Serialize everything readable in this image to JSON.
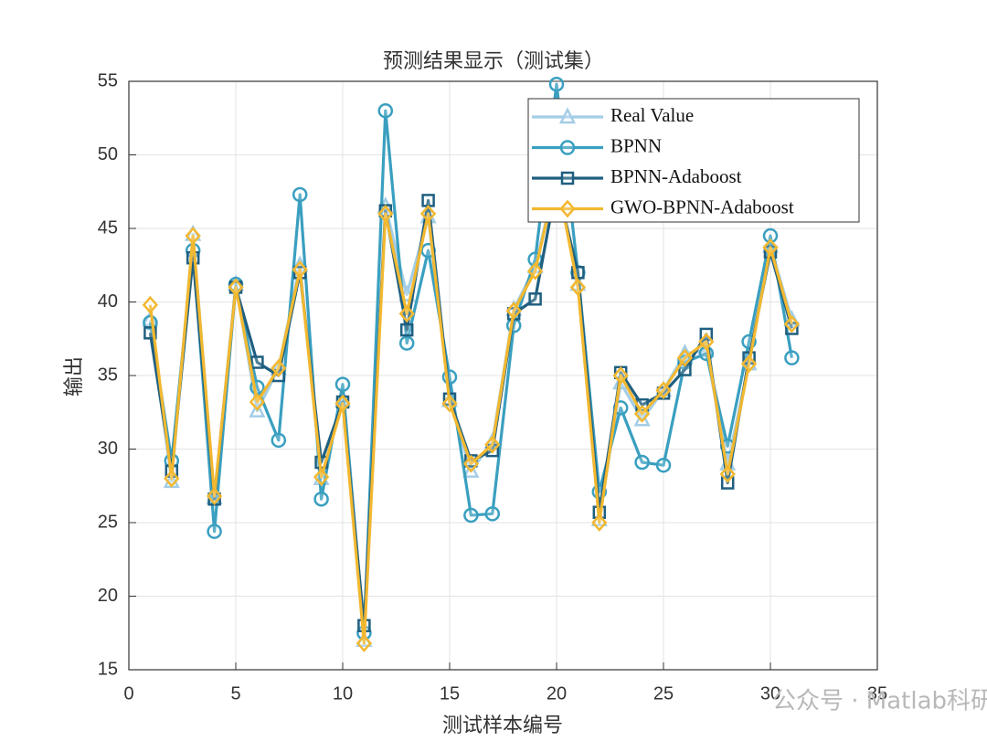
{
  "chart_data": {
    "type": "line",
    "title": "预测结果显示（测试集）",
    "x_label": "测试样本编号",
    "y_label": "输出",
    "x": [
      1,
      2,
      3,
      4,
      5,
      6,
      7,
      8,
      9,
      10,
      11,
      12,
      13,
      14,
      15,
      16,
      17,
      18,
      19,
      20,
      21,
      22,
      23,
      24,
      25,
      26,
      27,
      28,
      29,
      30,
      31
    ],
    "series": [
      {
        "name": "Real Value",
        "color": "#a4cde6",
        "marker": "triangle",
        "values": [
          38.8,
          27.8,
          44.6,
          26.7,
          41.2,
          32.6,
          35.5,
          42.5,
          28.0,
          33.3,
          17.0,
          46.5,
          40.5,
          45.8,
          33.3,
          28.5,
          30.5,
          39.5,
          42.4,
          48.5,
          41.2,
          25.2,
          34.5,
          32.0,
          34.0,
          36.5,
          36.7,
          29.0,
          35.8,
          43.8,
          38.8
        ]
      },
      {
        "name": "BPNN",
        "color": "#3a9fc0",
        "marker": "circle",
        "values": [
          38.6,
          29.2,
          43.5,
          24.4,
          41.2,
          34.2,
          30.6,
          47.3,
          26.6,
          34.4,
          17.5,
          53.0,
          37.2,
          43.5,
          34.9,
          25.5,
          25.6,
          38.4,
          42.9,
          54.8,
          42.0,
          27.1,
          32.8,
          29.1,
          28.9,
          35.9,
          36.5,
          30.2,
          37.3,
          44.5,
          36.2
        ]
      },
      {
        "name": "BPNN-Adaboost",
        "color": "#1f5f80",
        "marker": "square",
        "values": [
          37.9,
          28.5,
          43.0,
          26.6,
          41.0,
          35.9,
          35.0,
          42.0,
          29.1,
          33.2,
          18.0,
          46.2,
          38.1,
          46.9,
          33.4,
          29.2,
          29.9,
          39.2,
          40.2,
          48.0,
          42.0,
          25.7,
          35.2,
          33.0,
          33.8,
          35.4,
          37.8,
          27.7,
          36.2,
          43.4,
          38.2
        ]
      },
      {
        "name": "GWO-BPNN-Adaboost",
        "color": "#f2b830",
        "marker": "diamond",
        "values": [
          39.8,
          28.0,
          44.5,
          26.8,
          41.0,
          33.2,
          35.5,
          42.2,
          28.1,
          33.1,
          16.8,
          46.0,
          39.2,
          46.0,
          33.1,
          29.0,
          30.3,
          39.4,
          42.1,
          48.5,
          41.0,
          25.0,
          35.0,
          32.4,
          34.0,
          36.2,
          37.3,
          28.3,
          35.8,
          43.7,
          38.5
        ]
      }
    ],
    "xlim": [
      0,
      35
    ],
    "xticks": [
      0,
      5,
      10,
      15,
      20,
      25,
      30,
      35
    ],
    "ylim": [
      15,
      55
    ],
    "yticks": [
      15,
      20,
      25,
      30,
      35,
      40,
      45,
      50,
      55
    ],
    "grid": true,
    "legend": "northeast",
    "watermark": "公众号 · Matlab科研助手"
  }
}
